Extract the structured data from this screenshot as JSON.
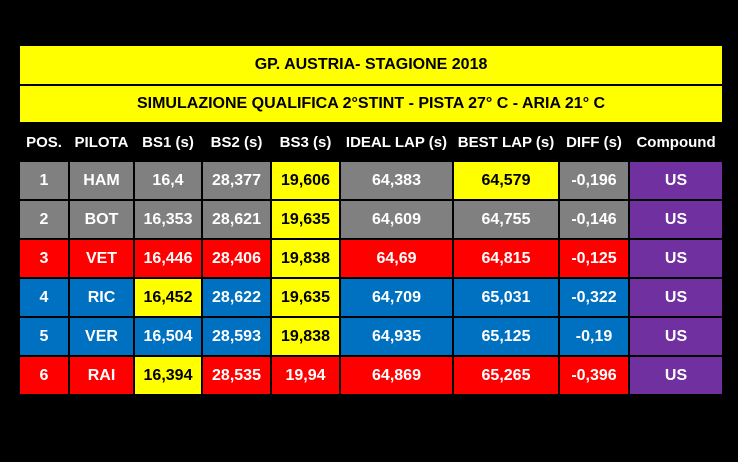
{
  "table": {
    "title": "GP. AUSTRIA- STAGIONE 2018",
    "subtitle": "SIMULAZIONE QUALIFICA 2°STINT - PISTA 27° C  - ARIA 21° C",
    "header": [
      "POS.",
      "PILOTA",
      "BS1 (s)",
      "BS2 (s)",
      "BS3 (s)",
      "IDEAL LAP (s)",
      "BEST LAP (s)",
      "DIFF (s)",
      "Compound"
    ],
    "rows": [
      {
        "cells": [
          "1",
          "HAM",
          "16,4",
          "28,377",
          "19,606",
          "64,383",
          "64,579",
          "-0,196",
          "US"
        ],
        "colors": [
          "#808080",
          "#808080",
          "#808080",
          "#808080",
          "#ffff00",
          "#808080",
          "#ffff00",
          "#808080",
          "#7030a0"
        ]
      },
      {
        "cells": [
          "2",
          "BOT",
          "16,353",
          "28,621",
          "19,635",
          "64,609",
          "64,755",
          "-0,146",
          "US"
        ],
        "colors": [
          "#808080",
          "#808080",
          "#808080",
          "#808080",
          "#ffff00",
          "#808080",
          "#808080",
          "#808080",
          "#7030a0"
        ]
      },
      {
        "cells": [
          "3",
          "VET",
          "16,446",
          "28,406",
          "19,838",
          "64,69",
          "64,815",
          "-0,125",
          "US"
        ],
        "colors": [
          "#ff0000",
          "#ff0000",
          "#ff0000",
          "#ff0000",
          "#ffff00",
          "#ff0000",
          "#ff0000",
          "#ff0000",
          "#7030a0"
        ]
      },
      {
        "cells": [
          "4",
          "RIC",
          "16,452",
          "28,622",
          "19,635",
          "64,709",
          "65,031",
          "-0,322",
          "US"
        ],
        "colors": [
          "#0070c0",
          "#0070c0",
          "#ffff00",
          "#0070c0",
          "#ffff00",
          "#0070c0",
          "#0070c0",
          "#0070c0",
          "#7030a0"
        ]
      },
      {
        "cells": [
          "5",
          "VER",
          "16,504",
          "28,593",
          "19,838",
          "64,935",
          "65,125",
          "-0,19",
          "US"
        ],
        "colors": [
          "#0070c0",
          "#0070c0",
          "#0070c0",
          "#0070c0",
          "#ffff00",
          "#0070c0",
          "#0070c0",
          "#0070c0",
          "#7030a0"
        ]
      },
      {
        "cells": [
          "6",
          "RAI",
          "16,394",
          "28,535",
          "19,94",
          "64,869",
          "65,265",
          "-0,396",
          "US"
        ],
        "colors": [
          "#ff0000",
          "#ff0000",
          "#ffff00",
          "#ff0000",
          "#ff0000",
          "#ff0000",
          "#ff0000",
          "#ff0000",
          "#7030a0"
        ]
      }
    ]
  }
}
